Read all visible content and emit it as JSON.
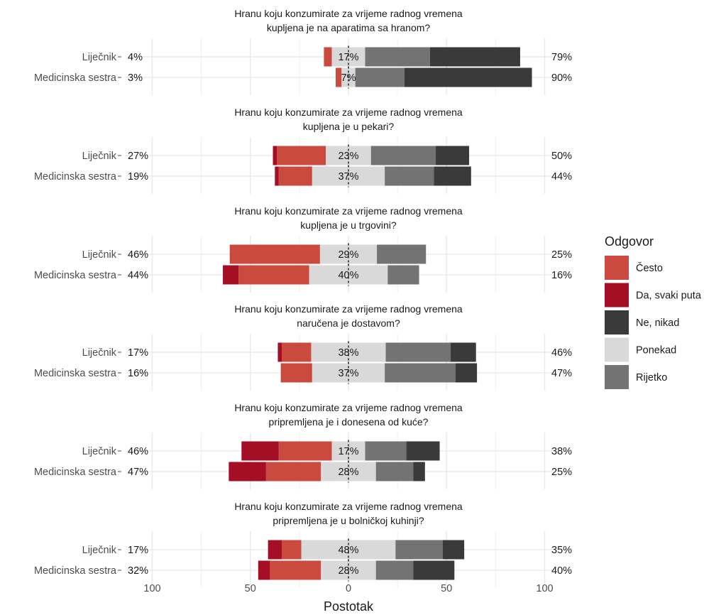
{
  "chart_data": {
    "type": "bar",
    "subtype": "diverging-stacked-likert",
    "xlabel": "Postotak",
    "xlim": [
      -100,
      100
    ],
    "x_ticks": [
      -100,
      -50,
      0,
      50,
      100
    ],
    "x_tick_labels": [
      "100",
      "50",
      "0",
      "50",
      "100"
    ],
    "grid": true,
    "legend": {
      "title": "Odgovor",
      "placement": "right",
      "entries": [
        {
          "label": "Često",
          "color": "#cb4a3f"
        },
        {
          "label": "Da, svaki puta",
          "color": "#a50f25"
        },
        {
          "label": "Ne, nikad",
          "color": "#3a3a3a"
        },
        {
          "label": "Ponekad",
          "color": "#d9d9d9"
        },
        {
          "label": "Rijetko",
          "color": "#737373"
        }
      ]
    },
    "panels": [
      {
        "title_lines": [
          "Hranu koju konzumirate za vrijeme radnog vremena",
          "kupljena je na aparatima sa hranom?"
        ],
        "rows": [
          {
            "group": "Liječnik",
            "left_label": "4%",
            "center_label": "17%",
            "right_label": "79%",
            "values": {
              "Da, svaki puta": 0,
              "Često": 4,
              "Ponekad": 17,
              "Rijetko": 33,
              "Ne, nikad": 46
            }
          },
          {
            "group": "Medicinska sestra",
            "left_label": "3%",
            "center_label": "7%",
            "right_label": "90%",
            "values": {
              "Da, svaki puta": 0,
              "Često": 3,
              "Ponekad": 7,
              "Rijetko": 25,
              "Ne, nikad": 65
            }
          }
        ]
      },
      {
        "title_lines": [
          "Hranu koju konzumirate za vrijeme radnog vremena",
          "kupljena je u pekari?"
        ],
        "rows": [
          {
            "group": "Liječnik",
            "left_label": "27%",
            "center_label": "23%",
            "right_label": "50%",
            "values": {
              "Da, svaki puta": 2,
              "Često": 25,
              "Ponekad": 23,
              "Rijetko": 33,
              "Ne, nikad": 17
            }
          },
          {
            "group": "Medicinska sestra",
            "left_label": "19%",
            "center_label": "37%",
            "right_label": "44%",
            "values": {
              "Da, svaki puta": 2,
              "Često": 17,
              "Ponekad": 37,
              "Rijetko": 25,
              "Ne, nikad": 19
            }
          }
        ]
      },
      {
        "title_lines": [
          "Hranu koju konzumirate za vrijeme radnog vremena",
          "kupljena je u trgovini?"
        ],
        "rows": [
          {
            "group": "Liječnik",
            "left_label": "46%",
            "center_label": "29%",
            "right_label": "25%",
            "values": {
              "Da, svaki puta": 0,
              "Često": 46,
              "Ponekad": 29,
              "Rijetko": 25,
              "Ne, nikad": 0
            }
          },
          {
            "group": "Medicinska sestra",
            "left_label": "44%",
            "center_label": "40%",
            "right_label": "16%",
            "values": {
              "Da, svaki puta": 8,
              "Često": 36,
              "Ponekad": 40,
              "Rijetko": 16,
              "Ne, nikad": 0
            }
          }
        ]
      },
      {
        "title_lines": [
          "Hranu koju konzumirate za vrijeme radnog vremena",
          "naručena je dostavom?"
        ],
        "rows": [
          {
            "group": "Liječnik",
            "left_label": "17%",
            "center_label": "38%",
            "right_label": "46%",
            "values": {
              "Da, svaki puta": 2,
              "Često": 15,
              "Ponekad": 38,
              "Rijetko": 33,
              "Ne, nikad": 13
            }
          },
          {
            "group": "Medicinska sestra",
            "left_label": "16%",
            "center_label": "37%",
            "right_label": "47%",
            "values": {
              "Da, svaki puta": 0,
              "Često": 16,
              "Ponekad": 37,
              "Rijetko": 36,
              "Ne, nikad": 11
            }
          }
        ]
      },
      {
        "title_lines": [
          "Hranu koju konzumirate za vrijeme radnog vremena",
          "pripremljena je i donesena od kuće?"
        ],
        "rows": [
          {
            "group": "Liječnik",
            "left_label": "46%",
            "center_label": "17%",
            "right_label": "38%",
            "values": {
              "Da, svaki puta": 19,
              "Često": 27,
              "Ponekad": 17,
              "Rijetko": 21,
              "Ne, nikad": 17
            }
          },
          {
            "group": "Medicinska sestra",
            "left_label": "47%",
            "center_label": "28%",
            "right_label": "25%",
            "values": {
              "Da, svaki puta": 19,
              "Često": 28,
              "Ponekad": 28,
              "Rijetko": 19,
              "Ne, nikad": 6
            }
          }
        ]
      },
      {
        "title_lines": [
          "Hranu koju konzumirate za vrijeme radnog vremena",
          "pripremljena je u bolničkoj kuhinji?"
        ],
        "rows": [
          {
            "group": "Liječnik",
            "left_label": "17%",
            "center_label": "48%",
            "right_label": "35%",
            "values": {
              "Da, svaki puta": 7,
              "Često": 10,
              "Ponekad": 48,
              "Rijetko": 24,
              "Ne, nikad": 11
            }
          },
          {
            "group": "Medicinska sestra",
            "left_label": "32%",
            "center_label": "28%",
            "right_label": "40%",
            "values": {
              "Da, svaki puta": 6,
              "Često": 26,
              "Ponekad": 28,
              "Rijetko": 19,
              "Ne, nikad": 21
            }
          }
        ]
      }
    ]
  }
}
